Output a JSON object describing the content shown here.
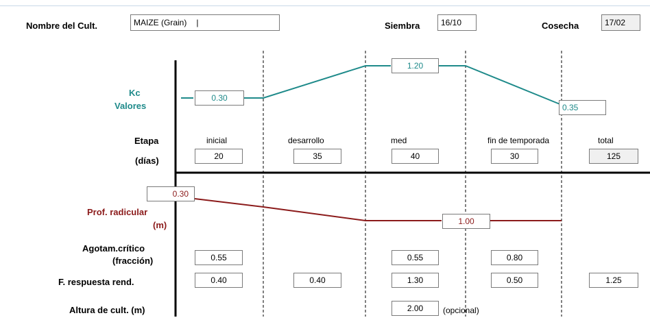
{
  "header": {
    "crop_label": "Nombre del Cult.",
    "crop_value": "MAIZE  (Grain)",
    "sowing_label": "Siembra",
    "sowing_value": "16/10",
    "harvest_label": "Cosecha",
    "harvest_value": "17/02"
  },
  "kc": {
    "label_line1": "Kc",
    "label_line2": "Valores",
    "initial": "0.30",
    "mid": "1.20",
    "end": "0.35"
  },
  "stage": {
    "label_line1": "Etapa",
    "label_line2": "(días)",
    "names": [
      "inicial",
      "desarrollo",
      "med",
      "fin de temporada",
      "total"
    ],
    "days": [
      "20",
      "35",
      "40",
      "30",
      "125"
    ]
  },
  "root": {
    "label_line1": "Prof. radicular",
    "label_line2": "(m)",
    "initial": "0.30",
    "max": "1.00"
  },
  "depletion": {
    "label_line1": "Agotam.crítico",
    "label_line2": "(fracción)",
    "values": [
      "0.55",
      "0.55",
      "0.80"
    ]
  },
  "yield_response": {
    "label": "F. respuesta rend.",
    "values": [
      "0.40",
      "0.40",
      "1.30",
      "0.50",
      "1.25"
    ]
  },
  "height": {
    "label": "Altura de cult. (m)",
    "value": "2.00",
    "note": "(opcional)"
  },
  "colors": {
    "kc_line": "#1e8a8a",
    "root_line": "#8b1a1a"
  }
}
